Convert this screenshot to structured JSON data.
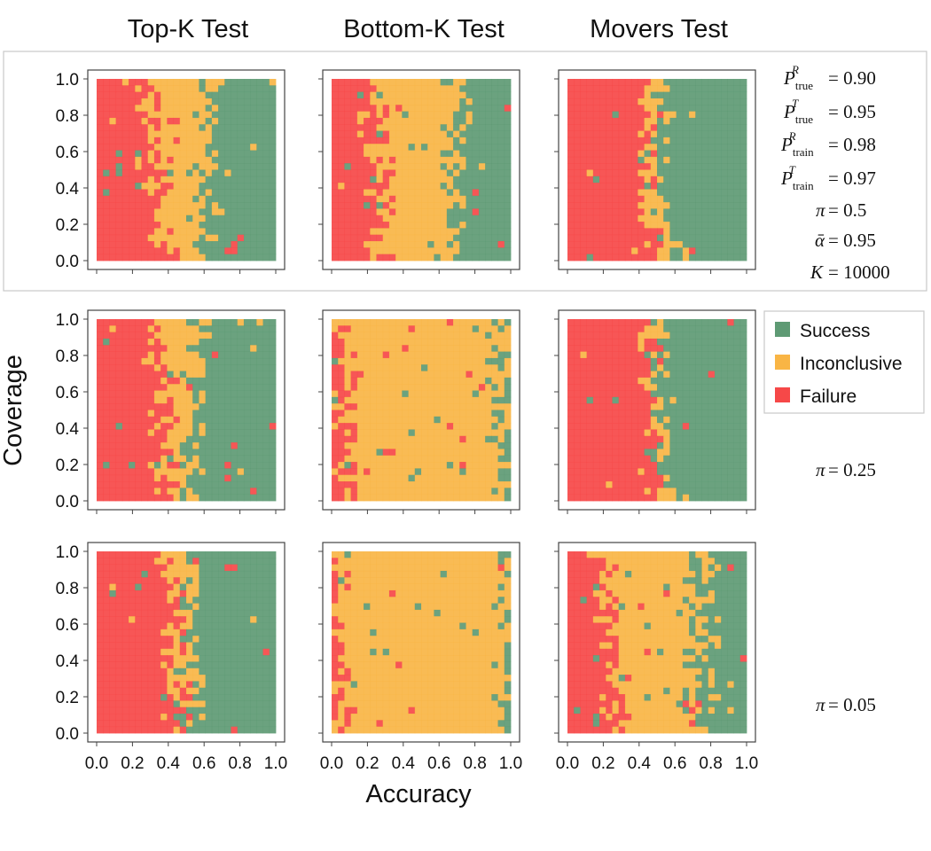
{
  "colors": {
    "success": "#5e9a74",
    "inconclusive": "#f9b545",
    "failure": "#f64848",
    "frame": "#444444",
    "group_box": "#c8c8c8"
  },
  "legend": {
    "location": "right of middle row",
    "entries": [
      {
        "label": "Success",
        "color": "#5e9a74"
      },
      {
        "label": "Inconclusive",
        "color": "#f9b545"
      },
      {
        "label": "Failure",
        "color": "#f64848"
      }
    ]
  },
  "params": {
    "p_true_r": "= 0.90",
    "p_true_t": "= 0.95",
    "p_train_r": "= 0.98",
    "p_train_t": "= 0.97",
    "pi_top": "= 0.5",
    "alpha": "= 0.95",
    "k": "= 10000",
    "pi_middle": "= 0.25",
    "pi_bottom": "= 0.05"
  },
  "chart_data": {
    "type": "heatmap",
    "columns": [
      "Top-K Test",
      "Bottom-K Test",
      "Movers Test"
    ],
    "rows_pi": [
      0.5,
      0.25,
      0.05
    ],
    "xlabel": "Accuracy",
    "ylabel": "Coverage",
    "xlim": [
      0,
      1
    ],
    "ylim": [
      0,
      1
    ],
    "xticks": [
      "0.0",
      "0.2",
      "0.4",
      "0.6",
      "0.8",
      "1.0"
    ],
    "yticks": [
      "0.0",
      "0.2",
      "0.4",
      "0.6",
      "0.8",
      "1.0"
    ],
    "grid": false,
    "categories": [
      "Success",
      "Inconclusive",
      "Failure"
    ],
    "panels": [
      {
        "row": 0,
        "col": 0,
        "test": "Top-K Test",
        "pi": 0.5,
        "failure_below_accuracy": 0.3,
        "success_above_accuracy": 0.62,
        "noise": 0.05
      },
      {
        "row": 0,
        "col": 1,
        "test": "Bottom-K Test",
        "pi": 0.5,
        "failure_below_accuracy": 0.22,
        "success_above_accuracy": 0.7,
        "noise": 0.05
      },
      {
        "row": 0,
        "col": 2,
        "test": "Movers Test",
        "pi": 0.5,
        "failure_below_accuracy": 0.45,
        "success_above_accuracy": 0.52,
        "noise": 0.02
      },
      {
        "row": 1,
        "col": 0,
        "test": "Top-K Test",
        "pi": 0.25,
        "failure_below_accuracy": 0.34,
        "success_above_accuracy": 0.55,
        "noise": 0.04
      },
      {
        "row": 1,
        "col": 1,
        "test": "Bottom-K Test",
        "pi": 0.25,
        "failure_below_accuracy": 0.05,
        "success_above_accuracy": 0.97,
        "noise": 0.06
      },
      {
        "row": 1,
        "col": 2,
        "test": "Movers Test",
        "pi": 0.25,
        "failure_below_accuracy": 0.45,
        "success_above_accuracy": 0.52,
        "noise": 0.02
      },
      {
        "row": 2,
        "col": 0,
        "test": "Top-K Test",
        "pi": 0.05,
        "failure_below_accuracy": 0.4,
        "success_above_accuracy": 0.53,
        "noise": 0.03
      },
      {
        "row": 2,
        "col": 1,
        "test": "Bottom-K Test",
        "pi": 0.05,
        "failure_below_accuracy": 0.0,
        "success_above_accuracy": 1.0,
        "noise": 0.04
      },
      {
        "row": 2,
        "col": 2,
        "test": "Movers Test",
        "pi": 0.05,
        "failure_below_accuracy": 0.2,
        "success_above_accuracy": 0.75,
        "noise": 0.06
      }
    ]
  }
}
